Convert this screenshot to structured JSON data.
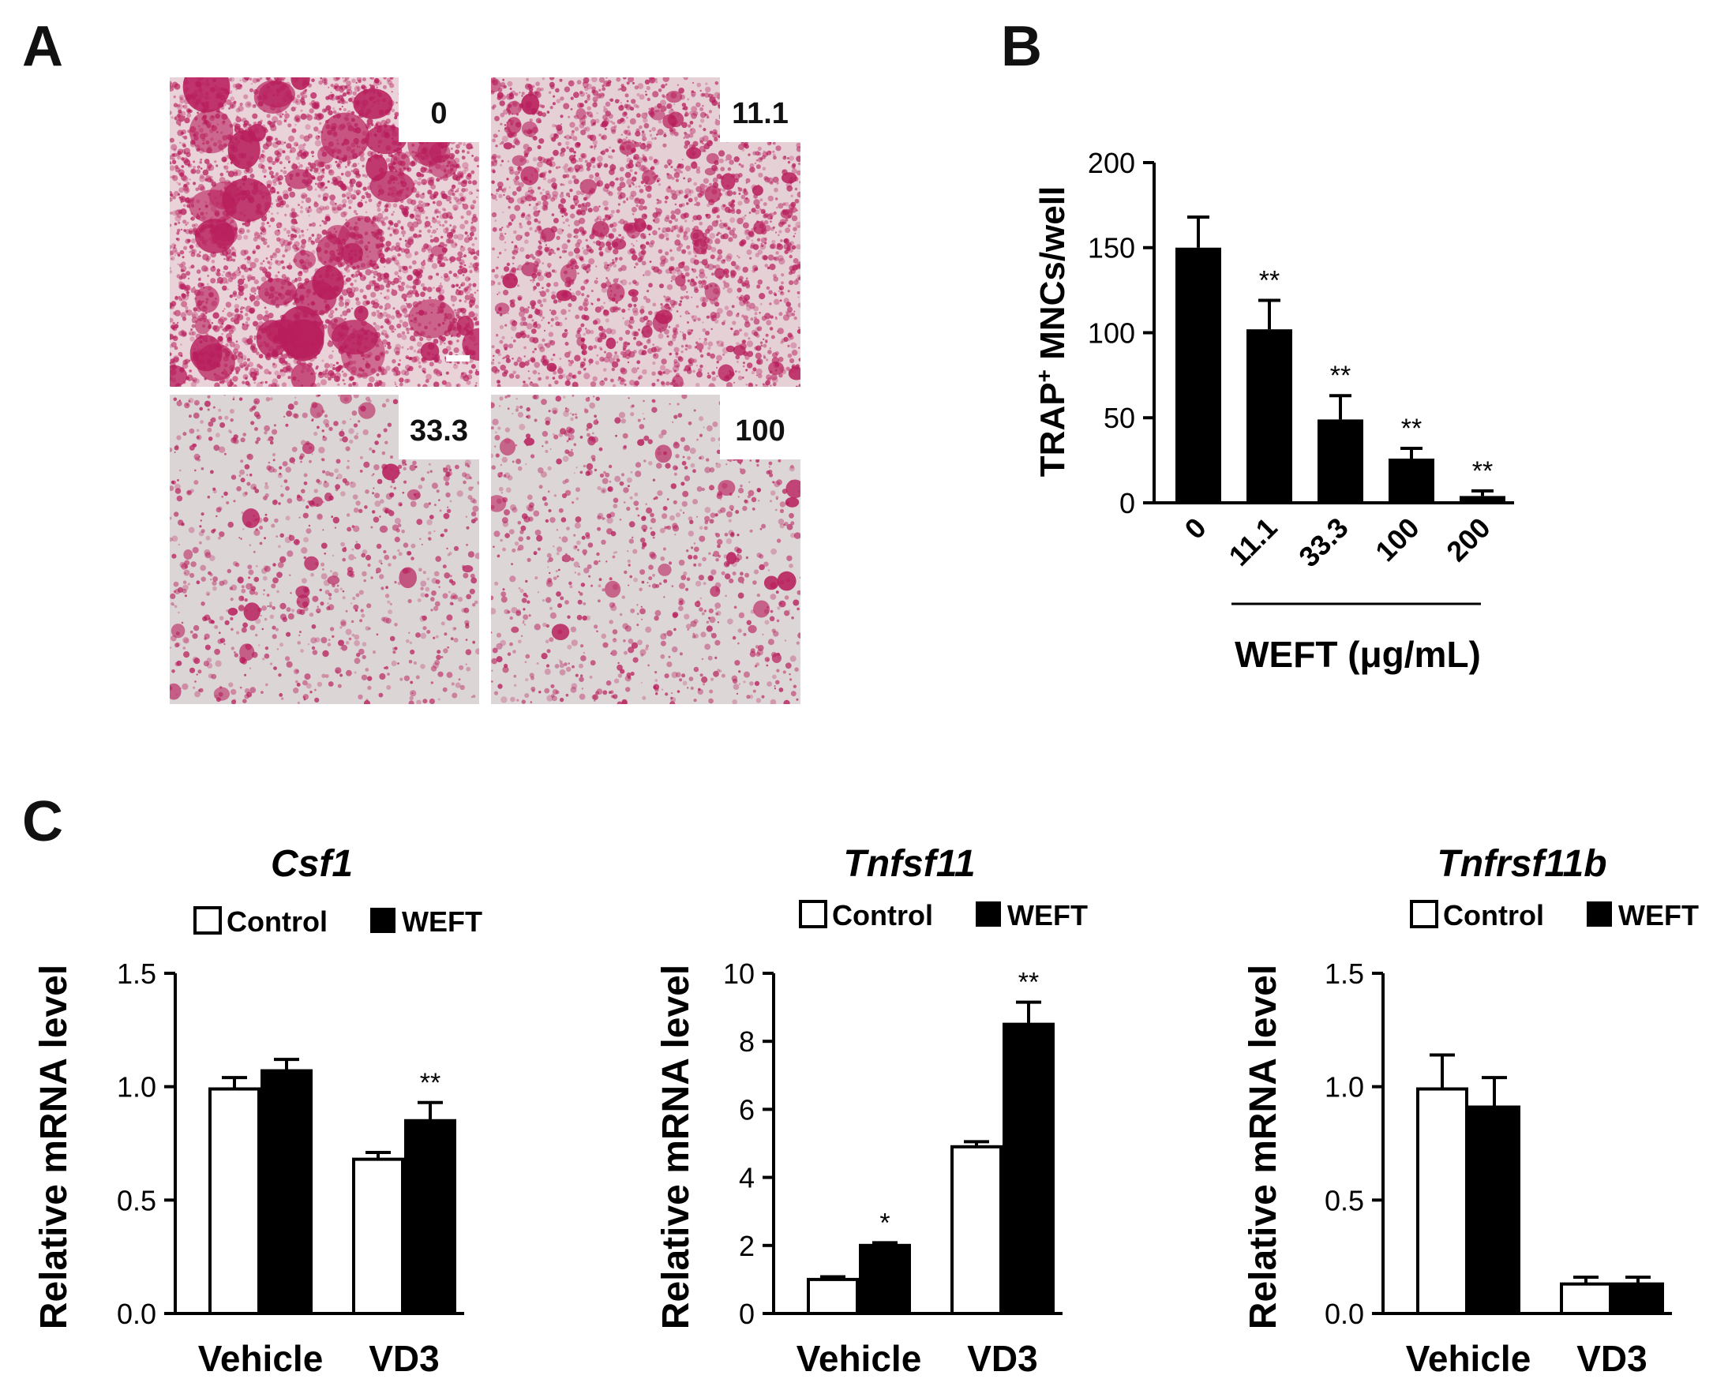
{
  "figure": {
    "panel_a": "A",
    "panel_b": "B",
    "panel_c": "C"
  },
  "micrographs": {
    "labels": [
      "0",
      "11.1",
      "33.3",
      "100"
    ],
    "stain_color": "#b81e5c",
    "background_tones": [
      "#e9d2d8",
      "#e5d0d6",
      "#dcd5d5",
      "#ddd6d6"
    ]
  },
  "colors": {
    "bar_filled": "#000000",
    "bar_open": "#ffffff",
    "axis": "#000000"
  },
  "chart_data": [
    {
      "id": "B",
      "type": "bar",
      "ylabel_prefix": "TRAP",
      "ylabel_sup": "+",
      "ylabel_suffix": " MNCs/well",
      "xlabel": "WEFT (μg/mL)",
      "categories": [
        "0",
        "11.1",
        "33.3",
        "100",
        "200"
      ],
      "values": [
        150,
        102,
        49,
        26,
        4
      ],
      "errors": [
        18,
        17,
        14,
        6,
        3
      ],
      "significance": [
        "",
        "**",
        "**",
        "**",
        "**"
      ],
      "ylim": [
        0,
        200
      ],
      "yticks": [
        "0",
        "50",
        "100",
        "150",
        "200"
      ],
      "grid": false
    },
    {
      "id": "C1",
      "type": "bar",
      "title": "Csf1",
      "ylabel": "Relative mRNA level",
      "categories": [
        "Vehicle",
        "VD3"
      ],
      "legend": [
        "Control",
        "WEFT"
      ],
      "series": [
        {
          "name": "Control",
          "values": [
            0.99,
            0.68
          ],
          "errors": [
            0.05,
            0.03
          ]
        },
        {
          "name": "WEFT",
          "values": [
            1.07,
            0.85
          ],
          "errors": [
            0.05,
            0.08
          ]
        }
      ],
      "significance": [
        "",
        "**"
      ],
      "ylim": [
        0,
        1.5
      ],
      "yticks": [
        "0.0",
        "0.5",
        "1.0",
        "1.5"
      ],
      "grid": false
    },
    {
      "id": "C2",
      "type": "bar",
      "title": "Tnfsf11",
      "ylabel": "Relative mRNA level",
      "categories": [
        "Vehicle",
        "VD3"
      ],
      "legend": [
        "Control",
        "WEFT"
      ],
      "series": [
        {
          "name": "Control",
          "values": [
            1.0,
            4.9
          ],
          "errors": [
            0.08,
            0.15
          ]
        },
        {
          "name": "WEFT",
          "values": [
            2.0,
            8.5
          ],
          "errors": [
            0.08,
            0.65
          ]
        }
      ],
      "significance": [
        "*",
        "**"
      ],
      "ylim": [
        0,
        10
      ],
      "yticks": [
        "0",
        "2",
        "4",
        "6",
        "8",
        "10"
      ],
      "grid": false
    },
    {
      "id": "C3",
      "type": "bar",
      "title": "Tnfrsf11b",
      "ylabel": "Relative mRNA level",
      "categories": [
        "Vehicle",
        "VD3"
      ],
      "legend": [
        "Control",
        "WEFT"
      ],
      "series": [
        {
          "name": "Control",
          "values": [
            0.99,
            0.13
          ],
          "errors": [
            0.15,
            0.03
          ]
        },
        {
          "name": "WEFT",
          "values": [
            0.91,
            0.13
          ],
          "errors": [
            0.13,
            0.03
          ]
        }
      ],
      "significance": [
        "",
        ""
      ],
      "ylim": [
        0,
        1.5
      ],
      "yticks": [
        "0.0",
        "0.5",
        "1.0",
        "1.5"
      ],
      "grid": false
    }
  ]
}
